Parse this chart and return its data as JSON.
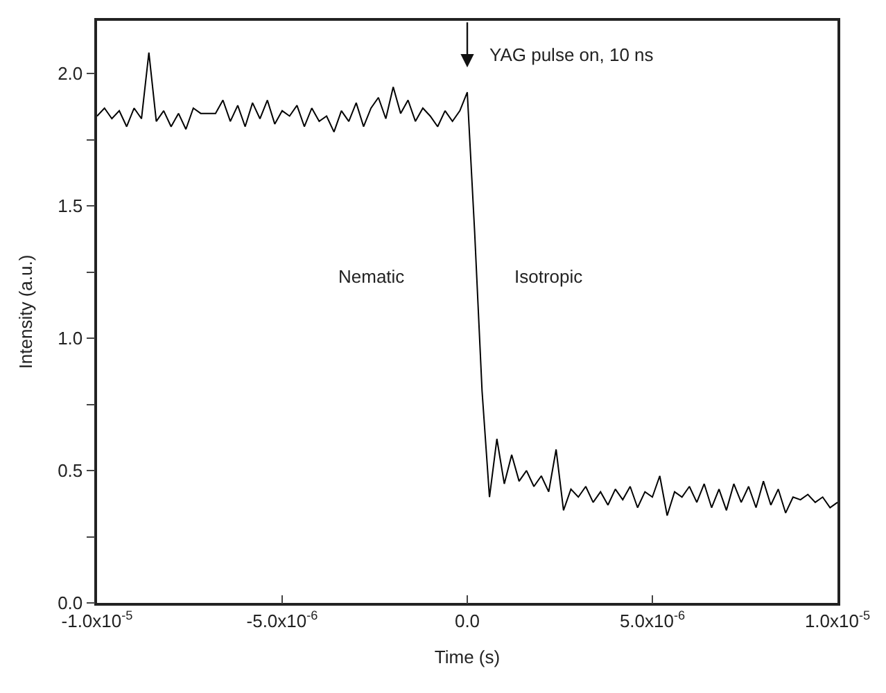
{
  "chart_data": {
    "type": "line",
    "xlabel": "Time (s)",
    "ylabel": "Intensity (a.u.)",
    "xlim": [
      -1e-05,
      1e-05
    ],
    "ylim": [
      0,
      2.2
    ],
    "xticks": [
      {
        "value": -1e-05,
        "label": "-1.0x10$^{-5}$"
      },
      {
        "value": -5e-06,
        "label": "-5.0x10$^{-6}$"
      },
      {
        "value": 0,
        "label": "0.0"
      },
      {
        "value": 5e-06,
        "label": "5.0x10$^{-6}$"
      },
      {
        "value": 1e-05,
        "label": "1.0x10$^{-5}$"
      }
    ],
    "yticks": [
      {
        "value": 0,
        "label": "0.0"
      },
      {
        "value": 0.25,
        "label": null
      },
      {
        "value": 0.5,
        "label": "0.5"
      },
      {
        "value": 0.75,
        "label": null
      },
      {
        "value": 1.0,
        "label": "1.0"
      },
      {
        "value": 1.25,
        "label": null
      },
      {
        "value": 1.5,
        "label": "1.5"
      },
      {
        "value": 1.75,
        "label": null
      },
      {
        "value": 2.0,
        "label": "2.0"
      }
    ],
    "marker": "none",
    "line_style": "solid",
    "annotations": [
      "YAG pulse on, 10 ns",
      "Nematic",
      "Isotropic"
    ],
    "x": [
      -1e-05,
      -9.8e-06,
      -9.6e-06,
      -9.4e-06,
      -9.2e-06,
      -9e-06,
      -8.8e-06,
      -8.6e-06,
      -8.4e-06,
      -8.2e-06,
      -8e-06,
      -7.8e-06,
      -7.6e-06,
      -7.4e-06,
      -7.2e-06,
      -7e-06,
      -6.8e-06,
      -6.6e-06,
      -6.4e-06,
      -6.2e-06,
      -6e-06,
      -5.8e-06,
      -5.6e-06,
      -5.4e-06,
      -5.2e-06,
      -5e-06,
      -4.8e-06,
      -4.6e-06,
      -4.4e-06,
      -4.2e-06,
      -4e-06,
      -3.8e-06,
      -3.6e-06,
      -3.4e-06,
      -3.2e-06,
      -3e-06,
      -2.8e-06,
      -2.6e-06,
      -2.4e-06,
      -2.2e-06,
      -2e-06,
      -1.8e-06,
      -1.6e-06,
      -1.4e-06,
      -1.2e-06,
      -1e-06,
      -8e-07,
      -6e-07,
      -4e-07,
      -2e-07,
      0,
      2e-07,
      4e-07,
      6e-07,
      8e-07,
      1e-06,
      1.2e-06,
      1.4e-06,
      1.6e-06,
      1.8e-06,
      2e-06,
      2.2e-06,
      2.4e-06,
      2.6e-06,
      2.8e-06,
      3e-06,
      3.2e-06,
      3.4e-06,
      3.6e-06,
      3.8e-06,
      4e-06,
      4.2e-06,
      4.4e-06,
      4.6e-06,
      4.8e-06,
      5e-06,
      5.2e-06,
      5.4e-06,
      5.6e-06,
      5.8e-06,
      6e-06,
      6.2e-06,
      6.4e-06,
      6.6e-06,
      6.8e-06,
      7e-06,
      7.2e-06,
      7.4e-06,
      7.6e-06,
      7.8e-06,
      8e-06,
      8.2e-06,
      8.4e-06,
      8.6e-06,
      8.8e-06,
      9e-06,
      9.2e-06,
      9.4e-06,
      9.6e-06,
      9.8e-06,
      1e-05
    ],
    "series": [
      {
        "color": "#000000",
        "values": [
          1.84,
          1.87,
          1.83,
          1.86,
          1.8,
          1.87,
          1.83,
          2.08,
          1.82,
          1.86,
          1.8,
          1.85,
          1.79,
          1.87,
          1.85,
          1.85,
          1.85,
          1.9,
          1.82,
          1.88,
          1.8,
          1.89,
          1.83,
          1.9,
          1.81,
          1.86,
          1.84,
          1.88,
          1.8,
          1.87,
          1.82,
          1.84,
          1.78,
          1.86,
          1.82,
          1.89,
          1.8,
          1.87,
          1.91,
          1.83,
          1.95,
          1.85,
          1.9,
          1.82,
          1.87,
          1.84,
          1.8,
          1.86,
          1.82,
          1.86,
          1.93,
          1.4,
          0.8,
          0.4,
          0.62,
          0.45,
          0.56,
          0.46,
          0.5,
          0.44,
          0.48,
          0.42,
          0.58,
          0.35,
          0.43,
          0.4,
          0.44,
          0.38,
          0.42,
          0.37,
          0.43,
          0.39,
          0.44,
          0.36,
          0.42,
          0.4,
          0.48,
          0.33,
          0.42,
          0.4,
          0.44,
          0.38,
          0.45,
          0.36,
          0.43,
          0.35,
          0.45,
          0.38,
          0.44,
          0.36,
          0.46,
          0.37,
          0.43,
          0.34,
          0.4,
          0.39,
          0.41,
          0.38,
          0.4,
          0.36,
          0.38
        ]
      }
    ]
  }
}
